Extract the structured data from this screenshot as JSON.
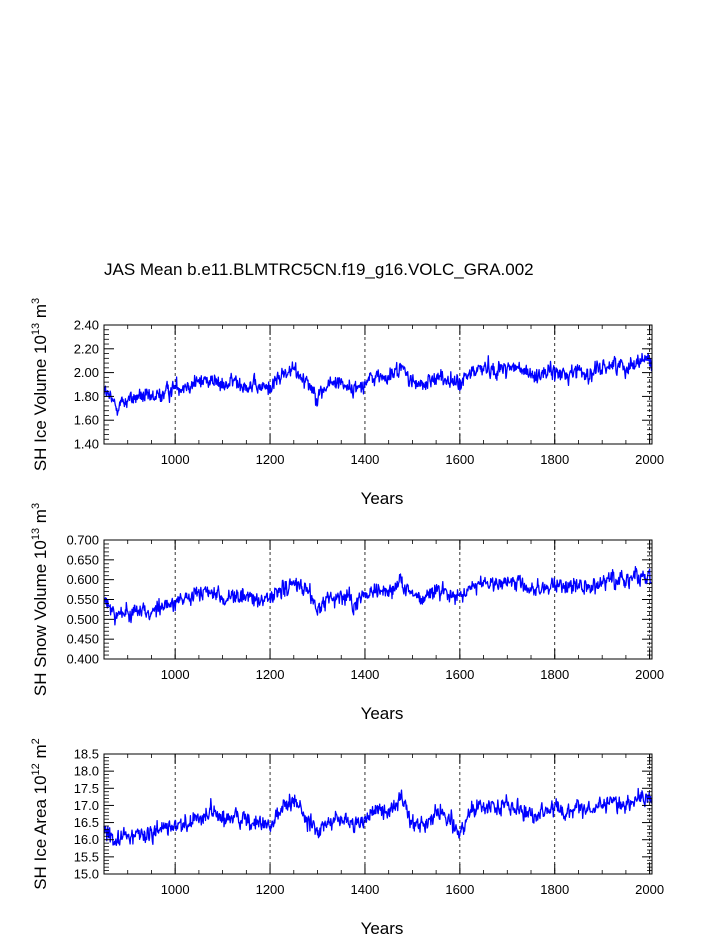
{
  "title": "JAS Mean b.e11.BLMTRC5CN.f19_g16.VOLC_GRA.002",
  "chart_data": [
    {
      "type": "line",
      "title": "JAS Mean b.e11.BLMTRC5CN.f19_g16.VOLC_GRA.002",
      "ylabel_main": "SH Ice Volume 10",
      "ylabel_exp": "13",
      "ylabel_unit": "m",
      "ylabel_unit_exp": "3",
      "xlabel": "Years",
      "xlim": [
        850,
        2005
      ],
      "ylim": [
        1.4,
        2.4
      ],
      "xticks": [
        1000,
        1200,
        1400,
        1600,
        1800,
        2000
      ],
      "yticks": [
        "1.40",
        "1.60",
        "1.80",
        "2.00",
        "2.20",
        "2.40"
      ],
      "color": "#0000ff",
      "x": [
        850,
        875,
        900,
        925,
        950,
        975,
        1000,
        1025,
        1050,
        1075,
        1100,
        1125,
        1150,
        1175,
        1200,
        1225,
        1250,
        1275,
        1300,
        1325,
        1350,
        1375,
        1400,
        1425,
        1450,
        1475,
        1500,
        1525,
        1550,
        1575,
        1600,
        1625,
        1650,
        1675,
        1700,
        1725,
        1750,
        1775,
        1800,
        1825,
        1850,
        1875,
        1900,
        1925,
        1950,
        1975,
        2000,
        2005
      ],
      "y": [
        1.85,
        1.72,
        1.77,
        1.8,
        1.78,
        1.82,
        1.88,
        1.9,
        1.92,
        1.95,
        1.88,
        1.93,
        1.9,
        1.87,
        1.88,
        1.98,
        2.02,
        1.95,
        1.8,
        1.9,
        1.93,
        1.85,
        1.92,
        1.97,
        1.95,
        2.05,
        1.92,
        1.88,
        1.98,
        1.93,
        1.9,
        2.0,
        2.05,
        2.02,
        2.05,
        2.03,
        1.97,
        2.0,
        2.0,
        1.98,
        2.03,
        1.97,
        2.05,
        2.07,
        2.05,
        2.1,
        2.12,
        2.05
      ]
    },
    {
      "type": "line",
      "ylabel_main": "SH Snow Volume 10",
      "ylabel_exp": "13",
      "ylabel_unit": "m",
      "ylabel_unit_exp": "3",
      "xlabel": "Years",
      "xlim": [
        850,
        2005
      ],
      "ylim": [
        0.4,
        0.7
      ],
      "xticks": [
        1000,
        1200,
        1400,
        1600,
        1800,
        2000
      ],
      "yticks": [
        "0.400",
        "0.450",
        "0.500",
        "0.550",
        "0.600",
        "0.650",
        "0.700"
      ],
      "color": "#0000ff",
      "x": [
        850,
        875,
        900,
        925,
        950,
        975,
        1000,
        1025,
        1050,
        1075,
        1100,
        1125,
        1150,
        1175,
        1200,
        1225,
        1250,
        1275,
        1300,
        1325,
        1350,
        1375,
        1400,
        1425,
        1450,
        1475,
        1500,
        1525,
        1550,
        1575,
        1600,
        1625,
        1650,
        1675,
        1700,
        1725,
        1750,
        1775,
        1800,
        1825,
        1850,
        1875,
        1900,
        1925,
        1950,
        1975,
        2000,
        2005
      ],
      "y": [
        0.545,
        0.51,
        0.52,
        0.525,
        0.52,
        0.53,
        0.545,
        0.55,
        0.56,
        0.57,
        0.55,
        0.56,
        0.555,
        0.545,
        0.55,
        0.575,
        0.59,
        0.57,
        0.525,
        0.555,
        0.56,
        0.54,
        0.56,
        0.575,
        0.57,
        0.6,
        0.56,
        0.55,
        0.575,
        0.565,
        0.555,
        0.585,
        0.595,
        0.59,
        0.595,
        0.59,
        0.575,
        0.58,
        0.585,
        0.575,
        0.59,
        0.575,
        0.595,
        0.6,
        0.6,
        0.61,
        0.615,
        0.6
      ]
    },
    {
      "type": "line",
      "ylabel_main": "SH Ice Area 10",
      "ylabel_exp": "12",
      "ylabel_unit": "m",
      "ylabel_unit_exp": "2",
      "xlabel": "Years",
      "xlim": [
        850,
        2005
      ],
      "ylim": [
        15.0,
        18.5
      ],
      "xticks": [
        1000,
        1200,
        1400,
        1600,
        1800,
        2000
      ],
      "yticks": [
        "15.0",
        "15.5",
        "16.0",
        "16.5",
        "17.0",
        "17.5",
        "18.0",
        "18.5"
      ],
      "color": "#0000ff",
      "x": [
        850,
        875,
        900,
        925,
        950,
        975,
        1000,
        1025,
        1050,
        1075,
        1100,
        1125,
        1150,
        1175,
        1200,
        1225,
        1250,
        1275,
        1300,
        1325,
        1350,
        1375,
        1400,
        1425,
        1450,
        1475,
        1500,
        1525,
        1550,
        1575,
        1600,
        1625,
        1650,
        1675,
        1700,
        1725,
        1750,
        1775,
        1800,
        1825,
        1850,
        1875,
        1900,
        1925,
        1950,
        1975,
        2000,
        2005
      ],
      "y": [
        16.4,
        16.0,
        16.1,
        16.2,
        16.1,
        16.3,
        16.4,
        16.5,
        16.6,
        16.9,
        16.5,
        16.7,
        16.6,
        16.4,
        16.5,
        16.9,
        17.1,
        16.7,
        16.2,
        16.5,
        16.6,
        16.4,
        16.6,
        16.9,
        16.8,
        17.2,
        16.6,
        16.4,
        16.8,
        16.6,
        16.2,
        16.9,
        17.0,
        16.9,
        17.0,
        16.9,
        16.7,
        16.8,
        16.9,
        16.7,
        17.0,
        16.8,
        17.0,
        17.1,
        17.0,
        17.2,
        17.3,
        17.1
      ]
    }
  ]
}
